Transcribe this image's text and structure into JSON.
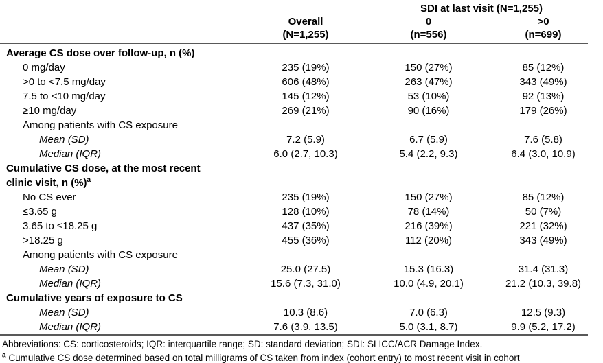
{
  "table": {
    "spanner": "SDI at last visit (N=1,255)",
    "columns": [
      {
        "name": "Overall",
        "n": "(N=1,255)"
      },
      {
        "name": "0",
        "n": "(n=556)"
      },
      {
        "name": ">0",
        "n": "(n=699)"
      }
    ],
    "rows": [
      {
        "style": "section",
        "label": "Average CS dose over follow-up, n (%)",
        "values": [
          "",
          "",
          ""
        ]
      },
      {
        "style": "item",
        "label": "0 mg/day",
        "values": [
          "235 (19%)",
          "150 (27%)",
          "85 (12%)"
        ]
      },
      {
        "style": "item",
        "label": ">0 to <7.5 mg/day",
        "values": [
          "606 (48%)",
          "263 (47%)",
          "343 (49%)"
        ]
      },
      {
        "style": "item",
        "label": "7.5 to <10 mg/day",
        "values": [
          "145 (12%)",
          "53 (10%)",
          "92 (13%)"
        ]
      },
      {
        "style": "item",
        "label": "≥10 mg/day",
        "values": [
          "269 (21%)",
          "90 (16%)",
          "179 (26%)"
        ]
      },
      {
        "style": "subhead",
        "label": "Among patients with CS exposure",
        "values": [
          "",
          "",
          ""
        ]
      },
      {
        "style": "stat",
        "label": "Mean (SD)",
        "values": [
          "7.2 (5.9)",
          "6.7 (5.9)",
          "7.6 (5.8)"
        ]
      },
      {
        "style": "stat",
        "label": "Median (IQR)",
        "values": [
          "6.0 (2.7, 10.3)",
          "5.4 (2.2, 9.3)",
          "6.4 (3.0, 10.9)"
        ]
      },
      {
        "style": "section",
        "label": "Cumulative CS dose, at the most recent\nclinic visit, n (%)",
        "sup": "a",
        "values": [
          "",
          "",
          ""
        ]
      },
      {
        "style": "item",
        "label": "No CS ever",
        "values": [
          "235 (19%)",
          "150 (27%)",
          "85 (12%)"
        ]
      },
      {
        "style": "item",
        "label": "≤3.65 g",
        "values": [
          "128 (10%)",
          "78 (14%)",
          "50 (7%)"
        ]
      },
      {
        "style": "item",
        "label": "3.65 to ≤18.25 g",
        "values": [
          "437 (35%)",
          "216 (39%)",
          "221 (32%)"
        ]
      },
      {
        "style": "item",
        "label": ">18.25 g",
        "values": [
          "455 (36%)",
          "112 (20%)",
          "343 (49%)"
        ]
      },
      {
        "style": "subhead",
        "label": "Among patients with CS exposure",
        "values": [
          "",
          "",
          ""
        ]
      },
      {
        "style": "stat",
        "label": "Mean (SD)",
        "values": [
          "25.0 (27.5)",
          "15.3 (16.3)",
          "31.4 (31.3)"
        ]
      },
      {
        "style": "stat",
        "label": "Median (IQR)",
        "values": [
          "15.6 (7.3, 31.0)",
          "10.0 (4.9, 20.1)",
          "21.2 (10.3, 39.8)"
        ]
      },
      {
        "style": "section",
        "label": "Cumulative years of exposure to CS",
        "values": [
          "",
          "",
          ""
        ]
      },
      {
        "style": "stat",
        "label": "Mean (SD)",
        "values": [
          "10.3 (8.6)",
          "7.0 (6.3)",
          "12.5 (9.3)"
        ]
      },
      {
        "style": "stat",
        "label": "Median (IQR)",
        "values": [
          "7.6 (3.9, 13.5)",
          "5.0 (3.1, 8.7)",
          "9.9 (5.2, 17.2)"
        ]
      }
    ],
    "footnotes": [
      {
        "text": "Abbreviations: CS: corticosteroids; IQR: interquartile range; SD: standard deviation; SDI: SLICC/ACR Damage Index."
      },
      {
        "sup": "a",
        "text": " Cumulative CS dose determined based on total milligrams of CS taken from index (cohort entry) to most recent visit in cohort"
      }
    ],
    "colors": {
      "rule": "#595959",
      "text": "#000000",
      "background": "#ffffff"
    }
  }
}
